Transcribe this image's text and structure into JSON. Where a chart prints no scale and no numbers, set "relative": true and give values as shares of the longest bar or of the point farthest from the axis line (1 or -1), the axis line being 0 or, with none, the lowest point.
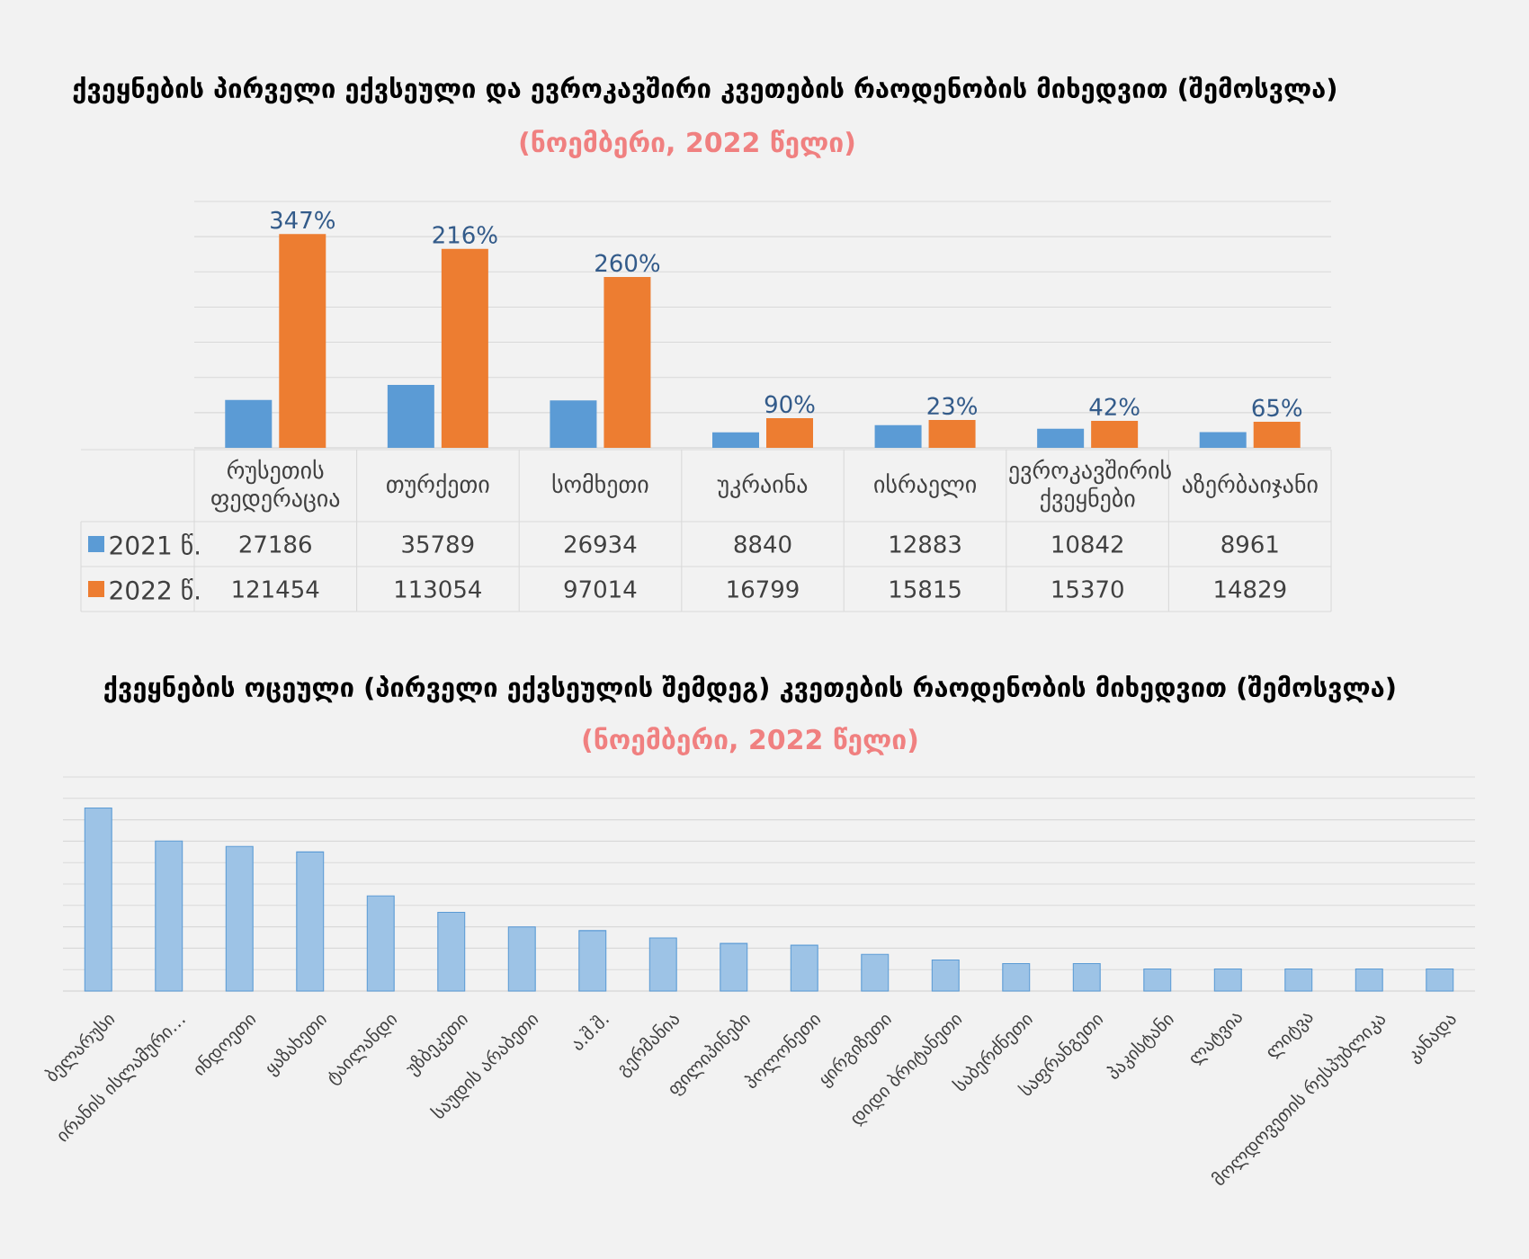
{
  "chart_data": [
    {
      "type": "bar",
      "title": "ქვეყნების პირველი ექვსეული და ევროკავშირი კვეთების რაოდენობის მიხედვით (შემოსვლა)",
      "subtitle": "(ნოემბერი, 2022 წელი)",
      "categories": [
        "რუსეთის ფედერაცია",
        "თურქეთი",
        "სომხეთი",
        "უკრაინა",
        "ისრაელი",
        "ევროკავშირის ქვეყნები",
        "აზერბაიჯანი"
      ],
      "series": [
        {
          "name": "2021 წ.",
          "color": "#5b9bd5",
          "values": [
            27186,
            35789,
            26934,
            8840,
            12883,
            10842,
            8961
          ]
        },
        {
          "name": "2022 წ.",
          "color": "#ed7d31",
          "values": [
            121454,
            113054,
            97014,
            16799,
            15815,
            15370,
            14829
          ]
        }
      ],
      "annotations": [
        {
          "text": "347%",
          "x": "რუსეთის ფედერაცია",
          "y": 121454
        },
        {
          "text": "216%",
          "x": "თურქეთი",
          "y": 113054
        },
        {
          "text": "260%",
          "x": "სომხეთი",
          "y": 97014
        },
        {
          "text": "90%",
          "x": "უკრაინა",
          "y": 16799
        },
        {
          "text": "23%",
          "x": "ისრაელი",
          "y": 15815
        },
        {
          "text": "42%",
          "x": "ევროკავშირის ქვეყნები",
          "y": 15370
        },
        {
          "text": "65%",
          "x": "აზერბაიჯანი",
          "y": 14829
        }
      ],
      "ylim": [
        0,
        140000
      ],
      "yticks": [
        {
          "value": 0,
          "label": null
        },
        {
          "value": 20000,
          "label": null
        },
        {
          "value": 40000,
          "label": null
        },
        {
          "value": 60000,
          "label": null
        },
        {
          "value": 80000,
          "label": null
        },
        {
          "value": 100000,
          "label": null
        },
        {
          "value": 120000,
          "label": null
        },
        {
          "value": 140000,
          "label": null
        }
      ],
      "grid": "y",
      "legend": "bottom",
      "data_labels": true,
      "tick_labels": "x"
    },
    {
      "type": "bar",
      "title": "ქვეყნების ოცეული (პირველი ექვსეულის შემდეგ) კვეთების რაოდენობის მიხედვით (შემოსვლა)",
      "subtitle": "(ნოემბერი, 2022 წელი)",
      "categories": [
        "ბელარუსი",
        "ირანის ისლამური…",
        "ინდოეთი",
        "ყაზახეთი",
        "ტაილანდი",
        "უზბეკეთი",
        "საუდის არაბეთი",
        "ა.შ.შ.",
        "გერმანია",
        "ფილიპინები",
        "პოლონეთი",
        "ყირგიზეთი",
        "დიდი ბრიტანეთი",
        "საბერძნეთი",
        "საფრანგეთი",
        "პაკისტანი",
        "ლატვია",
        "ლიტვა",
        "მოლდოვეთის რესპუბლიკა",
        "კანადა"
      ],
      "values": [
        1,
        0.82,
        0.79,
        0.76,
        0.52,
        0.43,
        0.35,
        0.33,
        0.29,
        0.26,
        0.25,
        0.2,
        0.17,
        0.15,
        0.15,
        0.12,
        0.12,
        0.12,
        0.12,
        0.12
      ],
      "color": "#9dc3e6",
      "relative": true,
      "grid": "y",
      "tick_labels": "x"
    }
  ]
}
